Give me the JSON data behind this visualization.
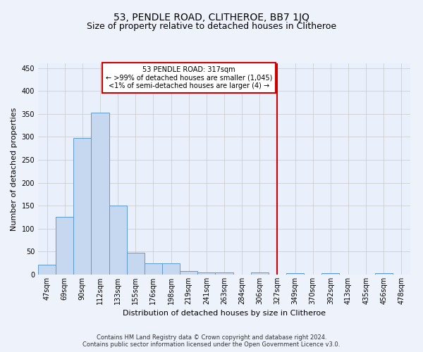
{
  "title": "53, PENDLE ROAD, CLITHEROE, BB7 1JQ",
  "subtitle": "Size of property relative to detached houses in Clitheroe",
  "xlabel": "Distribution of detached houses by size in Clitheroe",
  "ylabel": "Number of detached properties",
  "bar_labels": [
    "47sqm",
    "69sqm",
    "90sqm",
    "112sqm",
    "133sqm",
    "155sqm",
    "176sqm",
    "198sqm",
    "219sqm",
    "241sqm",
    "263sqm",
    "284sqm",
    "306sqm",
    "327sqm",
    "349sqm",
    "370sqm",
    "392sqm",
    "413sqm",
    "435sqm",
    "456sqm",
    "478sqm"
  ],
  "bar_values": [
    22,
    125,
    297,
    352,
    150,
    48,
    25,
    25,
    8,
    5,
    5,
    0,
    5,
    0,
    3,
    0,
    3,
    0,
    0,
    3,
    0
  ],
  "bar_color": "#c5d8f0",
  "bar_edge_color": "#5b9bd5",
  "background_color": "#eef2fb",
  "axes_bg_color": "#eaf0fb",
  "grid_color": "#c8c8c8",
  "vline_color": "#cc0000",
  "annotation_text": "53 PENDLE ROAD: 317sqm\n← >99% of detached houses are smaller (1,045)\n<1% of semi-detached houses are larger (4) →",
  "annotation_box_color": "#ffffff",
  "annotation_box_edge": "#cc0000",
  "ylim": [
    0,
    460
  ],
  "yticks": [
    0,
    50,
    100,
    150,
    200,
    250,
    300,
    350,
    400,
    450
  ],
  "title_fontsize": 10,
  "subtitle_fontsize": 9,
  "label_fontsize": 8,
  "tick_fontsize": 7,
  "annotation_fontsize": 7,
  "footer_text": "Contains HM Land Registry data © Crown copyright and database right 2024.\nContains public sector information licensed under the Open Government Licence v3.0.",
  "footer_fontsize": 6
}
